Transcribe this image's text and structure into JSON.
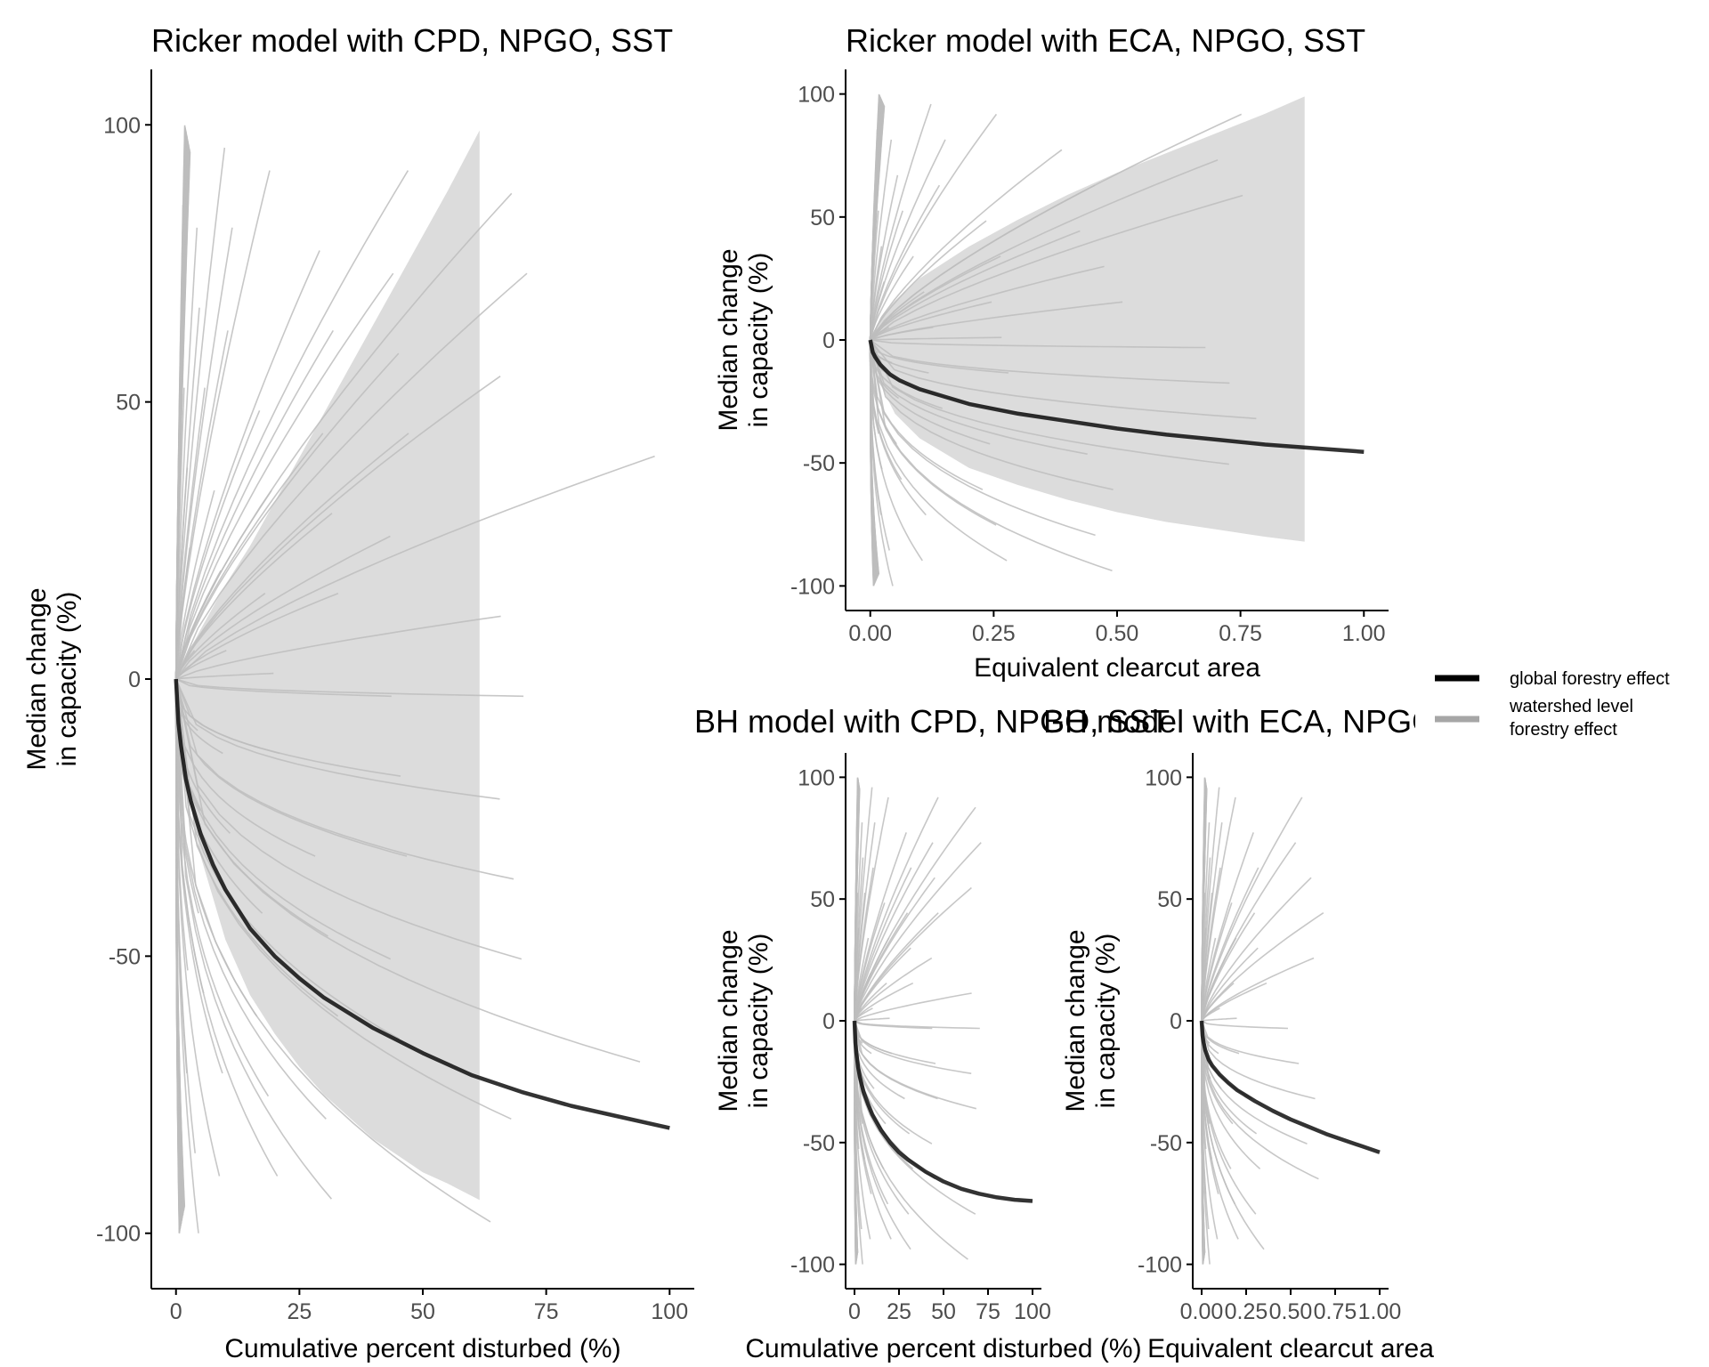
{
  "chart_data": [
    {
      "id": "ricker-cpd",
      "type": "line",
      "title": "Ricker model with CPD, NPGO, SST",
      "xlabel": "Cumulative percent disturbed (%)",
      "ylabel_lines": [
        "Median change",
        "in capacity (%)"
      ],
      "xlim": [
        -5,
        105
      ],
      "ylim": [
        -110,
        110
      ],
      "xticks": [
        0,
        25,
        50,
        75,
        100
      ],
      "xtick_labels": [
        "0",
        "25",
        "50",
        "75",
        "100"
      ],
      "yticks": [
        -100,
        -50,
        0,
        50,
        100
      ],
      "ytick_labels": [
        "-100",
        "-50",
        "0",
        "50",
        "100"
      ],
      "global_effect": {
        "x": [
          0,
          0.5,
          1,
          2,
          3,
          5,
          7.5,
          10,
          15,
          20,
          25,
          30,
          40,
          50,
          60,
          70,
          80,
          90,
          100
        ],
        "y": [
          0,
          -8,
          -12,
          -18,
          -22,
          -28,
          -33.5,
          -38,
          -45,
          -50,
          -54,
          -57.5,
          -63,
          -67.5,
          -71.5,
          -74.5,
          -77,
          -79,
          -81
        ]
      },
      "credible_band": {
        "x": [
          0,
          1,
          2,
          5,
          10,
          15,
          20,
          25,
          30,
          35,
          40,
          45,
          50,
          55,
          61.5
        ],
        "upper": [
          0,
          2,
          4,
          9,
          17,
          24,
          32,
          40,
          48,
          56,
          64,
          72,
          80,
          88,
          99
        ],
        "lower": [
          0,
          -12,
          -18,
          -32,
          -47,
          -57,
          -64,
          -70,
          -75,
          -79,
          -83,
          -86,
          -89,
          -91,
          -94
        ]
      },
      "watershed_max_x": [
        1,
        1.5,
        2,
        3,
        4,
        5,
        6,
        8,
        10,
        12,
        15,
        18,
        22,
        26,
        30,
        35,
        40,
        45,
        50,
        55,
        62,
        70,
        80,
        90,
        100
      ]
    },
    {
      "id": "ricker-eca",
      "type": "line",
      "title": "Ricker model with ECA, NPGO, SST",
      "xlabel": "Equivalent clearcut area",
      "ylabel_lines": [
        "Median change",
        "in capacity (%)"
      ],
      "xlim": [
        -0.05,
        1.05
      ],
      "ylim": [
        -110,
        110
      ],
      "xticks": [
        0,
        0.25,
        0.5,
        0.75,
        1
      ],
      "xtick_labels": [
        "0.00",
        "0.25",
        "0.50",
        "0.75",
        "1.00"
      ],
      "yticks": [
        -100,
        -50,
        0,
        50,
        100
      ],
      "ytick_labels": [
        "-100",
        "-50",
        "0",
        "50",
        "100"
      ],
      "global_effect": {
        "x": [
          0,
          0.005,
          0.01,
          0.02,
          0.04,
          0.06,
          0.1,
          0.15,
          0.2,
          0.3,
          0.4,
          0.5,
          0.6,
          0.7,
          0.8,
          0.9,
          1.0
        ],
        "y": [
          0,
          -5,
          -7,
          -10,
          -14,
          -16.5,
          -20,
          -23,
          -26,
          -30,
          -33,
          -36,
          -38.5,
          -40.5,
          -42.5,
          -44,
          -45.5
        ]
      },
      "credible_band": {
        "x": [
          0,
          0.02,
          0.05,
          0.1,
          0.2,
          0.3,
          0.4,
          0.5,
          0.6,
          0.7,
          0.8,
          0.88
        ],
        "upper": [
          0,
          9,
          16,
          25,
          38,
          49,
          59,
          68,
          76,
          84,
          92,
          99
        ],
        "lower": [
          0,
          -18,
          -30,
          -40,
          -52,
          -59,
          -65,
          -70,
          -74,
          -77,
          -80,
          -82
        ]
      },
      "watershed_max_x": [
        0.01,
        0.015,
        0.02,
        0.03,
        0.04,
        0.05,
        0.07,
        0.09,
        0.12,
        0.15,
        0.2,
        0.25,
        0.3,
        0.35,
        0.4,
        0.5,
        0.6,
        0.7,
        0.8,
        0.92
      ]
    },
    {
      "id": "bh-cpd",
      "type": "line",
      "title": "BH model with CPD, NPGO, SST",
      "xlabel": "Cumulative percent disturbed (%)",
      "ylabel_lines": [
        "Median change",
        "in capacity (%)"
      ],
      "xlim": [
        -5,
        105
      ],
      "ylim": [
        -110,
        110
      ],
      "xticks": [
        0,
        25,
        50,
        75,
        100
      ],
      "xtick_labels": [
        "0",
        "25",
        "50",
        "75",
        "100"
      ],
      "yticks": [
        -100,
        -50,
        0,
        50,
        100
      ],
      "ytick_labels": [
        "-100",
        "-50",
        "0",
        "50",
        "100"
      ],
      "global_effect": {
        "x": [
          0,
          0.5,
          1,
          2,
          3,
          5,
          7.5,
          10,
          15,
          20,
          25,
          30,
          40,
          50,
          60,
          70,
          80,
          90,
          100
        ],
        "y": [
          0,
          -9,
          -13,
          -19,
          -23,
          -29,
          -34,
          -38.5,
          -45,
          -50,
          -54,
          -57,
          -62,
          -66,
          -69,
          -71,
          -72.5,
          -73.5,
          -74
        ]
      },
      "credible_band": null,
      "watershed_max_x": [
        1,
        1.5,
        2,
        3,
        4,
        5,
        6,
        8,
        10,
        12,
        15,
        18,
        22,
        26,
        30,
        35,
        40,
        45,
        50,
        55,
        62,
        70,
        80,
        90
      ]
    },
    {
      "id": "bh-eca",
      "type": "line",
      "title": "BH model with ECA, NPGO, SST",
      "xlabel": "Equivalent clearcut area",
      "ylabel_lines": [
        "Median change",
        "in capacity (%)"
      ],
      "xlim": [
        -0.05,
        1.05
      ],
      "ylim": [
        -110,
        110
      ],
      "xticks": [
        0,
        0.25,
        0.5,
        0.75,
        1
      ],
      "xtick_labels": [
        "0.00",
        "0.25",
        "0.50",
        "0.75",
        "1.00"
      ],
      "yticks": [
        -100,
        -50,
        0,
        50,
        100
      ],
      "ytick_labels": [
        "-100",
        "-50",
        "0",
        "50",
        "100"
      ],
      "global_effect": {
        "x": [
          0,
          0.005,
          0.01,
          0.02,
          0.04,
          0.06,
          0.1,
          0.15,
          0.2,
          0.3,
          0.4,
          0.5,
          0.6,
          0.7,
          0.8,
          0.9,
          1.0
        ],
        "y": [
          0,
          -6,
          -8.5,
          -12,
          -16,
          -18.5,
          -22,
          -25.5,
          -28.5,
          -33,
          -37,
          -40.5,
          -43.5,
          -46.5,
          -49,
          -51.5,
          -54
        ]
      },
      "credible_band": null,
      "watershed_max_x": [
        0.01,
        0.015,
        0.02,
        0.03,
        0.04,
        0.05,
        0.06,
        0.08,
        0.1,
        0.12,
        0.15,
        0.18,
        0.22,
        0.26,
        0.3,
        0.35,
        0.4,
        0.5,
        0.6,
        0.75,
        0.9
      ]
    }
  ],
  "legend": {
    "items": [
      {
        "label_lines": [
          "global forestry effect"
        ],
        "color": "#000000"
      },
      {
        "label_lines": [
          "watershed level",
          "forestry effect"
        ],
        "color": "#a6a6a6"
      }
    ]
  },
  "colors": {
    "global_line": "#000000",
    "watershed_line": "#bdbdbd",
    "credible_band": "#dcdcdc",
    "axis": "#000000",
    "tick_label": "#4d4d4d"
  }
}
